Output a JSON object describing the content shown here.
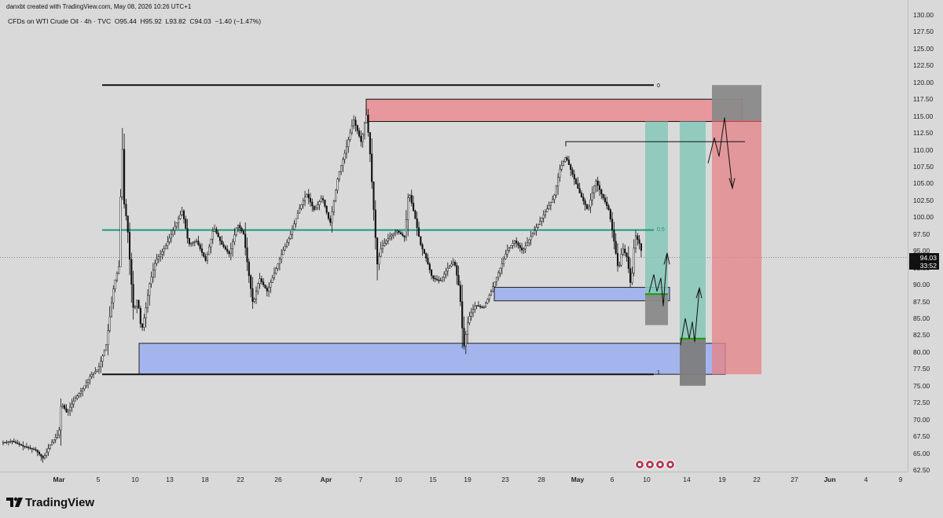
{
  "header": {
    "credit": "danxbt created with TradingView.com, May 08, 2026 10:26 UTC+1"
  },
  "legend": {
    "symbol": "CFDs on WTI Crude Oil · 4h · TVC",
    "ohlc": "O95.44  H95.92  L93.82  C94.03  −1.40 (−1.47%)"
  },
  "price_label": {
    "price": "94.03",
    "countdown": "33:52"
  },
  "fib_labels": {
    "top": "0",
    "mid": "0.5",
    "bottom": "1"
  },
  "branding": {
    "logo_text": "TradingView"
  },
  "colors": {
    "background": "#d9d9d9",
    "candle": "#111111",
    "supply_zone": "#e8989c",
    "demand_zone": "#a4b4ec",
    "target_zone": "#86c7b8",
    "stop_zone": "#8a8a8a",
    "fib_mid_line": "#1a9a80",
    "level_line": "#111111"
  },
  "chart_data": {
    "type": "candlestick",
    "title": "CFDs on WTI Crude Oil · 4h · TVC",
    "ylim": [
      62.5,
      130
    ],
    "y_ticks": [
      "62.50",
      "65.00",
      "67.50",
      "70.00",
      "72.50",
      "75.00",
      "77.50",
      "80.00",
      "82.50",
      "85.00",
      "87.50",
      "90.00",
      "92.50",
      "95.00",
      "97.50",
      "100.00",
      "102.50",
      "105.00",
      "107.50",
      "110.00",
      "112.50",
      "115.00",
      "117.50",
      "120.00",
      "122.50",
      "125.00",
      "127.50",
      "130.00"
    ],
    "x_ticks": [
      {
        "label": "Mar",
        "major": true
      },
      {
        "label": "5"
      },
      {
        "label": "10"
      },
      {
        "label": "13"
      },
      {
        "label": "18"
      },
      {
        "label": "22"
      },
      {
        "label": "26"
      },
      {
        "label": "Apr",
        "major": true
      },
      {
        "label": "7"
      },
      {
        "label": "10"
      },
      {
        "label": "15"
      },
      {
        "label": "19"
      },
      {
        "label": "23"
      },
      {
        "label": "28"
      },
      {
        "label": "May",
        "major": true
      },
      {
        "label": "6"
      },
      {
        "label": "10"
      },
      {
        "label": "14"
      },
      {
        "label": "19"
      },
      {
        "label": "22"
      },
      {
        "label": "27"
      },
      {
        "label": "Jun",
        "major": true
      },
      {
        "label": "4"
      },
      {
        "label": "9"
      }
    ],
    "price_path": [
      [
        0,
        66.5
      ],
      [
        15,
        66.8
      ],
      [
        30,
        66.0
      ],
      [
        45,
        65.5
      ],
      [
        55,
        64.2
      ],
      [
        65,
        66.5
      ],
      [
        75,
        68.0
      ],
      [
        78,
        72.5
      ],
      [
        85,
        71.0
      ],
      [
        95,
        73.0
      ],
      [
        105,
        74.5
      ],
      [
        115,
        76.5
      ],
      [
        125,
        77.5
      ],
      [
        135,
        81.0
      ],
      [
        145,
        90.0
      ],
      [
        152,
        93.0
      ],
      [
        155,
        113.0
      ],
      [
        158,
        102.0
      ],
      [
        162,
        99.0
      ],
      [
        166,
        92.0
      ],
      [
        170,
        86.0
      ],
      [
        175,
        88.0
      ],
      [
        180,
        83.0
      ],
      [
        185,
        86.0
      ],
      [
        190,
        90.0
      ],
      [
        198,
        93.5
      ],
      [
        210,
        95.5
      ],
      [
        220,
        98.0
      ],
      [
        232,
        101.0
      ],
      [
        240,
        96.0
      ],
      [
        250,
        96.5
      ],
      [
        262,
        93.5
      ],
      [
        272,
        98.5
      ],
      [
        282,
        96.0
      ],
      [
        292,
        94.5
      ],
      [
        302,
        99.0
      ],
      [
        310,
        97.5
      ],
      [
        316,
        92.0
      ],
      [
        322,
        87.0
      ],
      [
        330,
        91.0
      ],
      [
        340,
        89.0
      ],
      [
        350,
        92.0
      ],
      [
        360,
        95.0
      ],
      [
        370,
        97.5
      ],
      [
        380,
        101.0
      ],
      [
        390,
        103.5
      ],
      [
        400,
        101.0
      ],
      [
        410,
        103.0
      ],
      [
        420,
        99.0
      ],
      [
        430,
        106.0
      ],
      [
        440,
        110.0
      ],
      [
        450,
        114.5
      ],
      [
        460,
        111.0
      ],
      [
        466,
        115.5
      ],
      [
        470,
        111.0
      ],
      [
        475,
        102.0
      ],
      [
        480,
        93.0
      ],
      [
        485,
        95.5
      ],
      [
        495,
        97.0
      ],
      [
        505,
        98.0
      ],
      [
        515,
        97.0
      ],
      [
        520,
        104.0
      ],
      [
        528,
        100.0
      ],
      [
        535,
        96.0
      ],
      [
        542,
        94.0
      ],
      [
        550,
        91.0
      ],
      [
        560,
        90.5
      ],
      [
        570,
        92.5
      ],
      [
        578,
        93.5
      ],
      [
        585,
        89.0
      ],
      [
        590,
        80.5
      ],
      [
        596,
        85.0
      ],
      [
        605,
        87.0
      ],
      [
        615,
        86.5
      ],
      [
        625,
        89.0
      ],
      [
        635,
        92.0
      ],
      [
        645,
        95.0
      ],
      [
        655,
        96.5
      ],
      [
        665,
        95.0
      ],
      [
        675,
        97.0
      ],
      [
        685,
        99.0
      ],
      [
        695,
        101.0
      ],
      [
        705,
        103.0
      ],
      [
        712,
        107.0
      ],
      [
        720,
        109.0
      ],
      [
        728,
        106.5
      ],
      [
        738,
        103.5
      ],
      [
        748,
        101.0
      ],
      [
        758,
        105.5
      ],
      [
        765,
        103.5
      ],
      [
        775,
        101.0
      ],
      [
        782,
        96.0
      ],
      [
        787,
        92.0
      ],
      [
        792,
        95.5
      ],
      [
        798,
        94.0
      ],
      [
        803,
        89.5
      ],
      [
        808,
        97.5
      ],
      [
        814,
        96.0
      ],
      [
        818,
        94.03
      ]
    ],
    "levels": {
      "fib_0": 119.6,
      "fib_0_5": 98.1,
      "fib_1": 76.7,
      "current_price": 94.03,
      "resistance_line": 111.2
    },
    "zones": [
      {
        "name": "supply",
        "y_low": 114.2,
        "y_high": 117.5
      },
      {
        "name": "demand-small",
        "y_low": 87.6,
        "y_high": 89.6
      },
      {
        "name": "demand-large",
        "y_low": 76.7,
        "y_high": 81.3
      },
      {
        "name": "position-short-target",
        "y_low": 76.7,
        "y_high": 114.2
      },
      {
        "name": "position-short-stop",
        "y_low": 114.2,
        "y_high": 119.6
      },
      {
        "name": "position-long-1-target",
        "y_low": 88.6,
        "y_high": 114.2
      },
      {
        "name": "position-long-1-stop",
        "y_low": 84.0,
        "y_high": 88.6
      },
      {
        "name": "position-long-2-target",
        "y_low": 82.0,
        "y_high": 114.2
      },
      {
        "name": "position-long-2-stop",
        "y_low": 75.0,
        "y_high": 82.0
      }
    ]
  }
}
